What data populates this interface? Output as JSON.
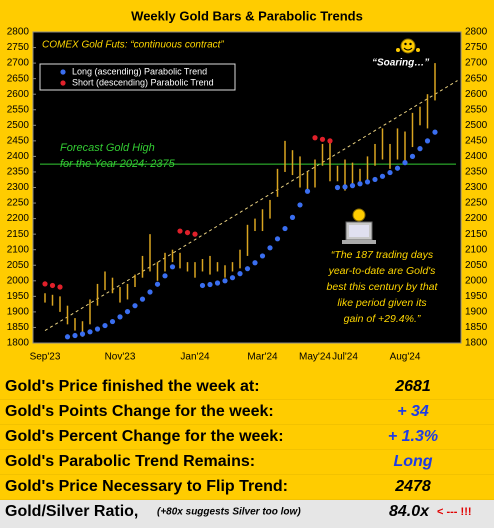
{
  "chart_data": {
    "type": "range-bar",
    "title": "Weekly Gold Bars & Parabolic Trends",
    "subtitle": "COMEX Gold Futs:  “continuous contract”",
    "categories": [
      "Sep'23",
      null,
      null,
      null,
      null,
      null,
      null,
      null,
      null,
      null,
      "Nov'23",
      null,
      null,
      null,
      null,
      null,
      null,
      null,
      null,
      null,
      "Jan'24",
      null,
      null,
      null,
      null,
      null,
      null,
      null,
      null,
      "Mar'24",
      null,
      null,
      null,
      null,
      null,
      null,
      "May'24",
      null,
      null,
      null,
      "Jul'24",
      null,
      null,
      null,
      null,
      null,
      null,
      null,
      "Aug'24",
      null,
      null,
      null,
      null
    ],
    "low": [
      1930,
      1920,
      1900,
      1860,
      1840,
      1820,
      1860,
      1920,
      1970,
      1960,
      1930,
      1940,
      1980,
      2010,
      2030,
      2000,
      2030,
      2060,
      2040,
      2030,
      2010,
      2030,
      2020,
      2030,
      2010,
      2030,
      2040,
      2080,
      2160,
      2160,
      2200,
      2270,
      2350,
      2340,
      2300,
      2290,
      2300,
      2370,
      2320,
      2320,
      2290,
      2310,
      2320,
      2320,
      2370,
      2390,
      2360,
      2390,
      2380,
      2430,
      2500,
      2490,
      2580
    ],
    "high": [
      1960,
      1955,
      1950,
      1920,
      1880,
      1870,
      1940,
      1990,
      2030,
      2010,
      1980,
      1990,
      2020,
      2080,
      2150,
      2060,
      2090,
      2100,
      2090,
      2060,
      2060,
      2070,
      2080,
      2060,
      2050,
      2060,
      2100,
      2180,
      2200,
      2230,
      2260,
      2360,
      2450,
      2420,
      2400,
      2350,
      2390,
      2440,
      2450,
      2370,
      2390,
      2380,
      2360,
      2400,
      2440,
      2490,
      2440,
      2490,
      2480,
      2540,
      2560,
      2600,
      2700
    ],
    "bar_color": "#DAA520",
    "series": [
      {
        "name": "Long (ascending) Parabolic Trend",
        "color": "#3A6EF0",
        "values": [
          null,
          null,
          null,
          1820,
          1824,
          1829,
          1836,
          1845,
          1856,
          1869,
          1884,
          1901,
          1920,
          1941,
          1964,
          1989,
          2016,
          2045,
          null,
          null,
          null,
          1985,
          1988,
          1993,
          2000,
          2010,
          2023,
          2039,
          2058,
          2080,
          2106,
          2135,
          2168,
          2204,
          2244,
          2288,
          null,
          null,
          null,
          2300,
          2302,
          2306,
          2312,
          2318,
          2326,
          2336,
          2348,
          2362,
          2380,
          2400,
          2425,
          2450,
          2478
        ]
      },
      {
        "name": "Short (descending) Parabolic Trend",
        "color": "#E0202A",
        "values": [
          1990,
          1985,
          1980,
          null,
          null,
          null,
          null,
          null,
          null,
          null,
          null,
          null,
          null,
          null,
          null,
          null,
          null,
          null,
          2160,
          2155,
          2150,
          null,
          null,
          null,
          null,
          null,
          null,
          null,
          null,
          null,
          null,
          null,
          null,
          null,
          null,
          null,
          2460,
          2455,
          2450,
          null,
          null,
          null,
          null,
          null,
          null,
          null,
          null,
          null,
          null,
          null,
          null,
          null,
          null
        ]
      }
    ],
    "trend_line": {
      "values": [
        1840,
        2600
      ],
      "color": "#E8D080"
    },
    "forecast": {
      "value": 2375,
      "color": "#33CC33",
      "label": [
        "Forecast Gold High",
        "for the Year 2024:  2375"
      ]
    },
    "soaring": "“Soaring…”",
    "quote": [
      "“The 187 trading days",
      "year-to-date are Gold's",
      "best this century by that",
      "like period given its",
      "gain of +29.4%.”"
    ],
    "ylim": [
      1800,
      2800
    ],
    "yticks": [
      1800,
      1850,
      1900,
      1950,
      2000,
      2050,
      2100,
      2150,
      2200,
      2250,
      2300,
      2350,
      2400,
      2450,
      2500,
      2550,
      2600,
      2650,
      2700,
      2750,
      2800
    ]
  },
  "table": {
    "rows": [
      {
        "label": "Gold's Price finished the week at:",
        "value": 2681,
        "value_color": "#000000"
      },
      {
        "label": "Gold's Points Change for the week:",
        "value": "+ 34",
        "value_color": "#1E3CE6"
      },
      {
        "label": "Gold's Percent Change for the week:",
        "value": "+ 1.3%",
        "value_color": "#1E3CE6"
      },
      {
        "label": "Gold's Parabolic Trend Remains:",
        "value": "Long",
        "value_color": "#1E3CE6"
      },
      {
        "label": "Gold's Price Necessary to Flip Trend:",
        "value": 2478,
        "value_color": "#000000"
      },
      {
        "label": "Gold/Silver Ratio,",
        "note": "(+80x suggests Silver too low)",
        "value": "84.0x",
        "value_color": "#000000",
        "flag": "< --- !!!",
        "flag_color": "#E00000"
      }
    ]
  }
}
